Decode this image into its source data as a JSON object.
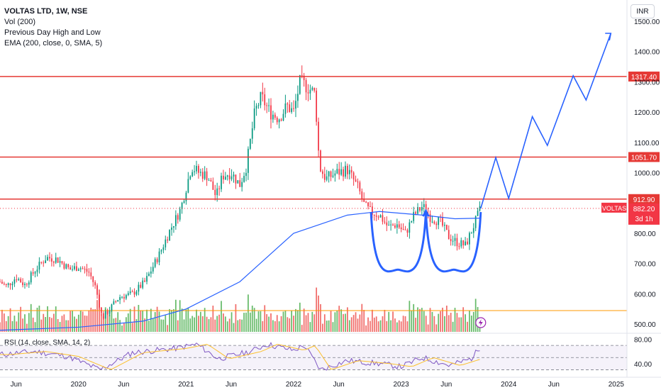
{
  "legend": {
    "title": "VOLTAS LTD, 1W, NSE",
    "vol": "Vol (200)",
    "pdhl": "Previous Day High and Low",
    "ema": "EMA (200, close, 0, SMA, 5)"
  },
  "currency_button": "INR",
  "rsi_legend": "RSI (14, close, SMA, 14, 2)",
  "chart_data": {
    "type": "candlestick",
    "symbol": "VOLTAS",
    "price_axis": {
      "ylim": [
        470,
        1570
      ],
      "ticks": [
        {
          "value": 500,
          "label": "500.00"
        },
        {
          "value": 600,
          "label": "600.00"
        },
        {
          "value": 700,
          "label": "700.00"
        },
        {
          "value": 800,
          "label": "800.00"
        },
        {
          "value": 1000,
          "label": "1000.00"
        },
        {
          "value": 1100,
          "label": "1100.00"
        },
        {
          "value": 1200,
          "label": "1200.00"
        },
        {
          "value": 1300,
          "label": "1300.00"
        },
        {
          "value": 1400,
          "label": "1400.00"
        },
        {
          "value": 1500,
          "label": "1500.00"
        }
      ]
    },
    "time_axis": {
      "xlim": [
        2019.27,
        2025.1
      ],
      "ticks": [
        {
          "value": 2019.42,
          "label": "Jun"
        },
        {
          "value": 2020.0,
          "label": "2020"
        },
        {
          "value": 2020.42,
          "label": "Jun"
        },
        {
          "value": 2021.0,
          "label": "2021"
        },
        {
          "value": 2021.42,
          "label": "Jun"
        },
        {
          "value": 2022.0,
          "label": "2022"
        },
        {
          "value": 2022.42,
          "label": "Jun"
        },
        {
          "value": 2023.0,
          "label": "2023"
        },
        {
          "value": 2023.42,
          "label": "Jun"
        },
        {
          "value": 2024.0,
          "label": "2024"
        },
        {
          "value": 2024.42,
          "label": "Jun"
        },
        {
          "value": 2025.0,
          "label": "2025"
        }
      ]
    },
    "horizontal_levels": [
      {
        "value": 1317.4,
        "label": "1317.40",
        "color": "#e53935"
      },
      {
        "value": 1051.7,
        "label": "1051.70",
        "color": "#e53935"
      },
      {
        "value": 912.9,
        "label": "912.90",
        "color": "#e53935"
      }
    ],
    "last_price": {
      "value": 882.2,
      "label": "882.20",
      "sub": "3d 1h",
      "tag": "VOLTAS",
      "color": "#f23645"
    },
    "colors": {
      "up": "#089981",
      "down": "#f23645",
      "vol_up": "#4caf50",
      "vol_down": "#ef5350",
      "ema": "#2962ff",
      "drawing": "#2962ff",
      "rsi": "#7e57c2",
      "rsi_ma": "#fbc02d",
      "vol_ma": "#ff9800"
    },
    "price_path": [
      [
        2019.27,
        640
      ],
      [
        2019.33,
        625
      ],
      [
        2019.42,
        655
      ],
      [
        2019.5,
        630
      ],
      [
        2019.6,
        680
      ],
      [
        2019.7,
        720
      ],
      [
        2019.8,
        715
      ],
      [
        2019.92,
        680
      ],
      [
        2020.0,
        690
      ],
      [
        2020.1,
        670
      ],
      [
        2020.16,
        620
      ],
      [
        2020.22,
        520
      ],
      [
        2020.28,
        545
      ],
      [
        2020.38,
        590
      ],
      [
        2020.5,
        600
      ],
      [
        2020.62,
        640
      ],
      [
        2020.75,
        730
      ],
      [
        2020.85,
        810
      ],
      [
        2020.95,
        880
      ],
      [
        2021.05,
        1020
      ],
      [
        2021.12,
        1000
      ],
      [
        2021.2,
        990
      ],
      [
        2021.28,
        920
      ],
      [
        2021.34,
        990
      ],
      [
        2021.42,
        1000
      ],
      [
        2021.5,
        960
      ],
      [
        2021.56,
        1020
      ],
      [
        2021.64,
        1200
      ],
      [
        2021.7,
        1250
      ],
      [
        2021.78,
        1200
      ],
      [
        2021.86,
        1180
      ],
      [
        2021.94,
        1220
      ],
      [
        2022.0,
        1200
      ],
      [
        2022.06,
        1300
      ],
      [
        2022.14,
        1280
      ],
      [
        2022.2,
        1260
      ],
      [
        2022.24,
        1020
      ],
      [
        2022.3,
        980
      ],
      [
        2022.4,
        1000
      ],
      [
        2022.5,
        1010
      ],
      [
        2022.6,
        950
      ],
      [
        2022.66,
        890
      ],
      [
        2022.72,
        870
      ],
      [
        2022.8,
        860
      ],
      [
        2022.88,
        820
      ],
      [
        2022.96,
        830
      ],
      [
        2023.04,
        800
      ],
      [
        2023.12,
        860
      ],
      [
        2023.2,
        890
      ],
      [
        2023.28,
        850
      ],
      [
        2023.36,
        840
      ],
      [
        2023.44,
        790
      ],
      [
        2023.52,
        770
      ],
      [
        2023.6,
        760
      ],
      [
        2023.68,
        830
      ],
      [
        2023.74,
        882
      ]
    ],
    "ema200": [
      [
        2019.27,
        480
      ],
      [
        2020.0,
        490
      ],
      [
        2020.6,
        510
      ],
      [
        2021.0,
        550
      ],
      [
        2021.5,
        640
      ],
      [
        2022.0,
        800
      ],
      [
        2022.5,
        860
      ],
      [
        2022.8,
        872
      ],
      [
        2023.2,
        860
      ],
      [
        2023.5,
        848
      ],
      [
        2023.74,
        850
      ]
    ],
    "projection": [
      [
        2023.74,
        882
      ],
      [
        2023.88,
        1050
      ],
      [
        2024.0,
        915
      ],
      [
        2024.22,
        1185
      ],
      [
        2024.36,
        1090
      ],
      [
        2024.6,
        1320
      ],
      [
        2024.72,
        1240
      ],
      [
        2024.95,
        1460
      ]
    ],
    "rsi": {
      "ylim": [
        20,
        90
      ],
      "ticks": [
        {
          "value": 80,
          "label": "80.00"
        },
        {
          "value": 40,
          "label": "40.00"
        }
      ],
      "band": [
        30,
        70
      ],
      "mid": 50,
      "path": [
        [
          2019.27,
          55
        ],
        [
          2019.6,
          60
        ],
        [
          2019.9,
          52
        ],
        [
          2020.2,
          30
        ],
        [
          2020.5,
          58
        ],
        [
          2020.9,
          65
        ],
        [
          2021.1,
          72
        ],
        [
          2021.3,
          48
        ],
        [
          2021.6,
          60
        ],
        [
          2021.75,
          72
        ],
        [
          2022.0,
          62
        ],
        [
          2022.1,
          70
        ],
        [
          2022.25,
          30
        ],
        [
          2022.5,
          45
        ],
        [
          2022.8,
          40
        ],
        [
          2023.0,
          35
        ],
        [
          2023.2,
          50
        ],
        [
          2023.45,
          37
        ],
        [
          2023.65,
          48
        ],
        [
          2023.74,
          68
        ]
      ]
    }
  }
}
